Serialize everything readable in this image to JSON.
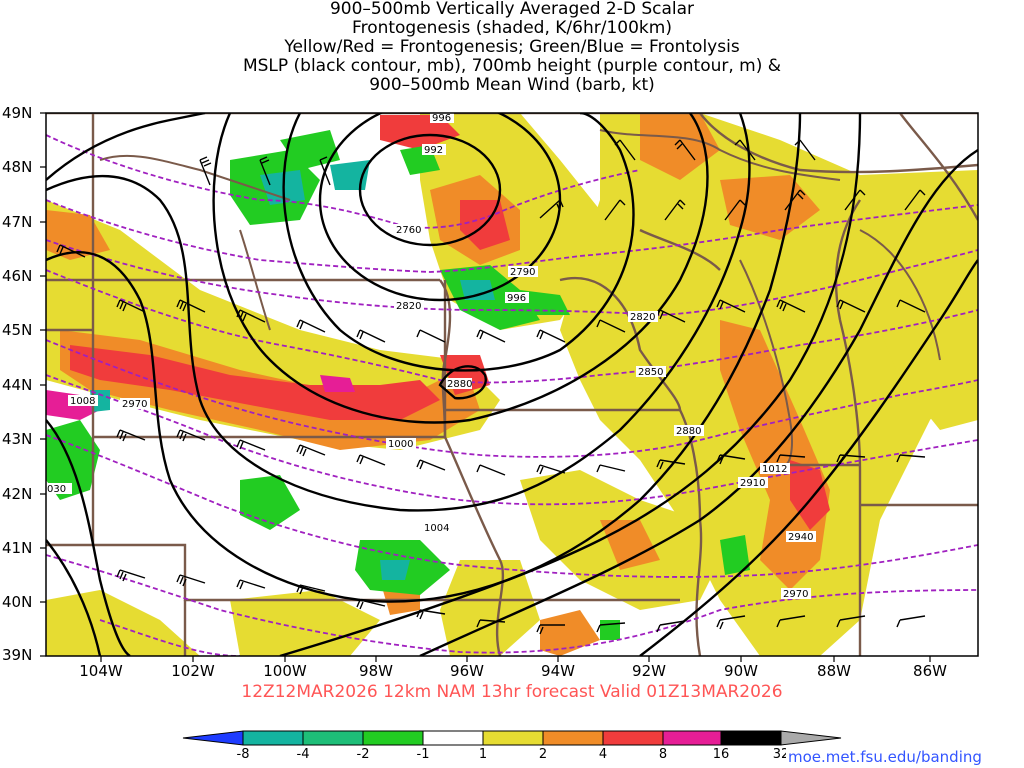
{
  "title_lines": [
    "900–500mb Vertically Averaged 2-D Scalar",
    "Frontogenesis (shaded, K/6hr/100km)",
    "Yellow/Red = Frontogenesis;  Green/Blue = Frontolysis",
    "MSLP (black contour, mb), 700mb height (purple contour, m) &",
    "900–500mb Mean Wind (barb, kt)"
  ],
  "lat_labels": [
    "49N",
    "48N",
    "47N",
    "46N",
    "45N",
    "44N",
    "43N",
    "42N",
    "41N",
    "40N",
    "39N"
  ],
  "lon_labels": [
    "104W",
    "102W",
    "100W",
    "98W",
    "96W",
    "94W",
    "92W",
    "90W",
    "88W",
    "86W"
  ],
  "valid_line": "12Z12MAR2026 12km NAM 13hr forecast Valid 01Z13MAR2026",
  "colorbar": {
    "labels": [
      "-8",
      "-4",
      "-2",
      "-1",
      "1",
      "2",
      "4",
      "8",
      "16",
      "32"
    ],
    "colors": [
      "#1e3cff",
      "#14b4a0",
      "#1ebe78",
      "#22cc22",
      "#ffffff",
      "#e6dc32",
      "#f08c28",
      "#f03c3c",
      "#e61e96",
      "#000000",
      "#aaaaaa"
    ]
  },
  "site": "moe.met.fsu.edu/banding",
  "contour_labels": {
    "mslp": [
      "996",
      "992",
      "996",
      "1000",
      "1004",
      "1008",
      "1012",
      "030"
    ],
    "height": [
      "2760",
      "2790",
      "2820",
      "2820",
      "2850",
      "2880",
      "2880",
      "2910",
      "2940",
      "2970",
      "2970"
    ]
  }
}
